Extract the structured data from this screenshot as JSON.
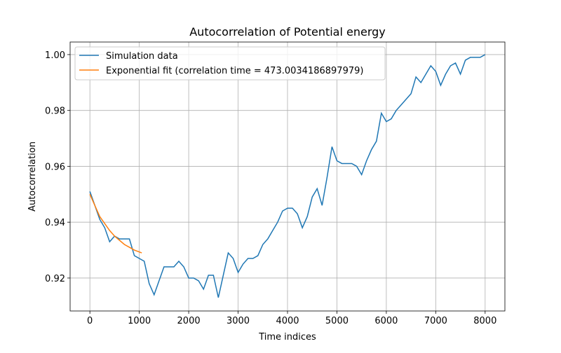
{
  "chart_data": {
    "type": "line",
    "title": "Autocorrelation of Potential energy",
    "xlabel": "Time indices",
    "ylabel": "Autocorrelation",
    "xlim": [
      -400,
      8400
    ],
    "ylim": [
      0.9082,
      1.0045
    ],
    "xticks": [
      0,
      1000,
      2000,
      3000,
      4000,
      5000,
      6000,
      7000,
      8000
    ],
    "yticks": [
      0.92,
      0.94,
      0.96,
      0.98,
      {
        "value": 1,
        "label": "1.00"
      }
    ],
    "grid": true,
    "legend": "upper left",
    "series": [
      {
        "name": "Simulation data",
        "color": "#1f77b4",
        "x": [
          0,
          100,
          200,
          300,
          400,
          500,
          600,
          700,
          800,
          900,
          1000,
          1100,
          1200,
          1300,
          1400,
          1500,
          1600,
          1700,
          1800,
          1900,
          2000,
          2100,
          2200,
          2300,
          2400,
          2500,
          2600,
          2700,
          2800,
          2900,
          3000,
          3100,
          3200,
          3300,
          3400,
          3500,
          3600,
          3700,
          3800,
          3900,
          4000,
          4100,
          4200,
          4300,
          4400,
          4500,
          4600,
          4700,
          4800,
          4900,
          5000,
          5100,
          5200,
          5300,
          5400,
          5500,
          5600,
          5700,
          5800,
          5900,
          6000,
          6100,
          6200,
          6300,
          6400,
          6500,
          6600,
          6700,
          6800,
          6900,
          7000,
          7100,
          7200,
          7300,
          7400,
          7500,
          7600,
          7700,
          7800,
          7900,
          8000
        ],
        "values": [
          0.951,
          0.946,
          0.941,
          0.938,
          0.933,
          0.935,
          0.934,
          0.934,
          0.934,
          0.928,
          0.927,
          0.926,
          0.918,
          0.914,
          0.919,
          0.924,
          0.924,
          0.924,
          0.926,
          0.924,
          0.92,
          0.92,
          0.919,
          0.916,
          0.921,
          0.921,
          0.913,
          0.921,
          0.929,
          0.927,
          0.922,
          0.925,
          0.927,
          0.927,
          0.928,
          0.932,
          0.934,
          0.937,
          0.94,
          0.944,
          0.945,
          0.945,
          0.943,
          0.938,
          0.942,
          0.949,
          0.952,
          0.946,
          0.956,
          0.967,
          0.962,
          0.961,
          0.961,
          0.961,
          0.96,
          0.957,
          0.962,
          0.966,
          0.969,
          0.979,
          0.976,
          0.977,
          0.98,
          0.982,
          0.984,
          0.986,
          0.992,
          0.99,
          0.993,
          0.996,
          0.994,
          0.989,
          0.993,
          0.996,
          0.997,
          0.993,
          0.998,
          0.999,
          0.999,
          0.999,
          1.0
        ]
      },
      {
        "name": "Exponential fit (correlation time = 473.0034186897979)",
        "color": "#ff7f0e",
        "x": [
          0,
          100,
          200,
          300,
          400,
          500,
          600,
          700,
          800,
          900,
          1050
        ],
        "values": [
          0.95,
          0.946,
          0.942,
          0.9395,
          0.937,
          0.935,
          0.9335,
          0.932,
          0.931,
          0.93,
          0.929
        ]
      }
    ]
  }
}
